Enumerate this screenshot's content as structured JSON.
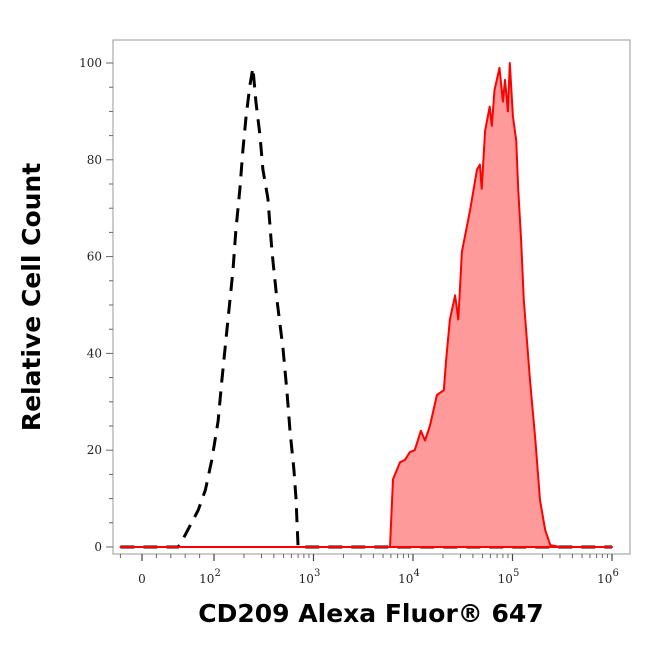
{
  "chart_data": {
    "type": "area",
    "title": "",
    "xlabel": "CD209 Alexa Fluor® 647",
    "ylabel": "Relative Cell Count",
    "x_scale": "biexponential (log above 10^2)",
    "ylim": [
      0,
      100
    ],
    "grid": false,
    "y_ticks": [
      "0",
      "20",
      "40",
      "60",
      "80",
      "100"
    ],
    "y_tick_values": [
      0,
      20,
      40,
      60,
      80,
      100
    ],
    "x_ticks": [
      {
        "value": 0,
        "base": "0",
        "exp": ""
      },
      {
        "value": 100,
        "base": "10",
        "exp": "2"
      },
      {
        "value": 1000,
        "base": "10",
        "exp": "3"
      },
      {
        "value": 10000,
        "base": "10",
        "exp": "4"
      },
      {
        "value": 100000,
        "base": "10",
        "exp": "5"
      },
      {
        "value": 1000000,
        "base": "10",
        "exp": "6"
      }
    ],
    "series": [
      {
        "style": "dashed-line",
        "color": "#000000",
        "x": [
          -30,
          50,
          53,
          60,
          78,
          88,
          97,
          110,
          120,
          135,
          155,
          166,
          182,
          195,
          210,
          230,
          246,
          264,
          290,
          310,
          348,
          383,
          430,
          494,
          542,
          580,
          636,
          667,
          700,
          1000000
        ],
        "y": [
          0,
          0,
          0.5,
          2.5,
          7.6,
          11.8,
          18,
          26,
          34.5,
          45,
          57,
          65.5,
          74,
          82,
          89,
          95.5,
          99,
          92,
          85,
          78,
          72,
          61,
          51,
          41,
          32,
          24,
          16,
          10,
          0,
          0
        ]
      },
      {
        "style": "filled",
        "color": "#ff0000",
        "fill": "#ff9a9a",
        "x": [
          -30,
          5870,
          6300,
          6900,
          7400,
          8300,
          9300,
          10400,
          12000,
          13200,
          14800,
          17400,
          20400,
          21500,
          23500,
          26500,
          28500,
          31000,
          37500,
          44000,
          47000,
          49000,
          53000,
          59000,
          62000,
          66000,
          74000,
          80000,
          84000,
          90000,
          94000,
          101000,
          109000,
          114000,
          122000,
          130000,
          150000,
          170000,
          189000,
          213000,
          240000,
          300000,
          1000000
        ],
        "y": [
          0,
          0,
          14,
          16,
          17.5,
          18,
          19.6,
          20,
          24,
          22,
          25,
          31.4,
          32.4,
          38.6,
          47,
          52,
          47,
          61,
          69.6,
          78,
          79,
          74,
          86,
          91,
          87,
          94.4,
          99,
          92,
          96.5,
          90,
          100,
          89,
          84,
          74,
          63.4,
          51,
          34.5,
          22,
          9.7,
          3.5,
          0.4,
          0,
          0
        ]
      }
    ]
  }
}
